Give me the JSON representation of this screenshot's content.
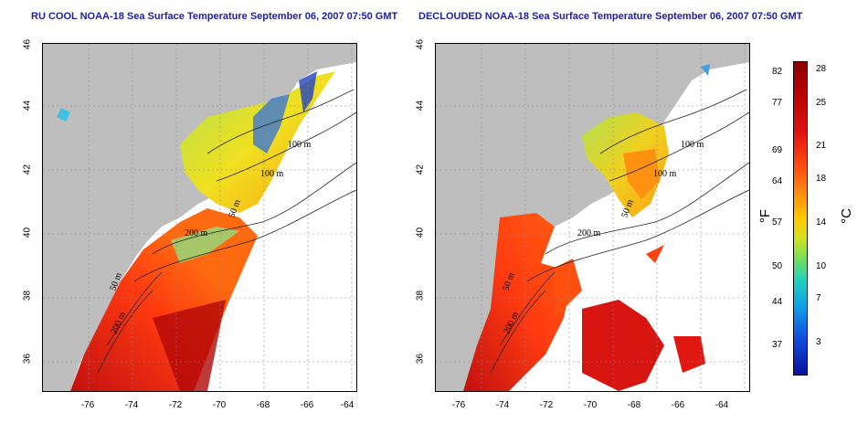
{
  "left_title": "RU COOL NOAA-18 Sea Surface Temperature September 06, 2007 07:50 GMT",
  "right_title": "DECLOUDED NOAA-18 Sea Surface Temperature September 06, 2007 07:50 GMT",
  "y_ticks": [
    "46",
    "44",
    "42",
    "40",
    "38",
    "36"
  ],
  "x_ticks": [
    "-76",
    "-74",
    "-72",
    "-70",
    "-68",
    "-66",
    "-64"
  ],
  "contour_labels": [
    "100 m",
    "100 m",
    "50 m",
    "200 m",
    "50 m",
    "200 m"
  ],
  "contour_labels_right": [
    "100 m",
    "100 m",
    "50 m",
    "200 m",
    "50 m",
    "200 m"
  ],
  "colorbar": {
    "fahrenheit": [
      "82",
      "77",
      "69",
      "64",
      "57",
      "50",
      "44",
      "37"
    ],
    "celsius": [
      "28",
      "25",
      "21",
      "18",
      "14",
      "10",
      "7",
      "3"
    ],
    "unit_f": "°F",
    "unit_c": "°C"
  },
  "colors": {
    "land": "#bebebe",
    "title": "#1f1f9e",
    "water_nodata": "#ffffff"
  }
}
